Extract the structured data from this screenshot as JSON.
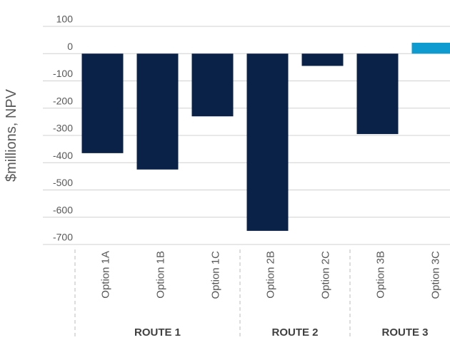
{
  "chart_data": {
    "type": "bar",
    "y_label": "$millions, NPV",
    "groups": [
      {
        "name": "ROUTE 1",
        "categories": [
          "Option 1A",
          "Option 1B",
          "Option 1C"
        ],
        "values": [
          -365,
          -425,
          -230
        ],
        "colors": [
          "#0a2148",
          "#0a2148",
          "#0a2148"
        ]
      },
      {
        "name": "ROUTE 2",
        "categories": [
          "Option 2B",
          "Option 2C"
        ],
        "values": [
          -650,
          -45
        ],
        "colors": [
          "#0a2148",
          "#0a2148"
        ]
      },
      {
        "name": "ROUTE 3",
        "categories": [
          "Option 3B",
          "Option 3C"
        ],
        "values": [
          -295,
          40
        ],
        "colors": [
          "#0a2148",
          "#0e9bd0"
        ]
      }
    ],
    "ylim": [
      -700,
      100
    ],
    "yticks": [
      100,
      0,
      -100,
      -200,
      -300,
      -400,
      -500,
      -600,
      -700
    ],
    "grid": true
  }
}
